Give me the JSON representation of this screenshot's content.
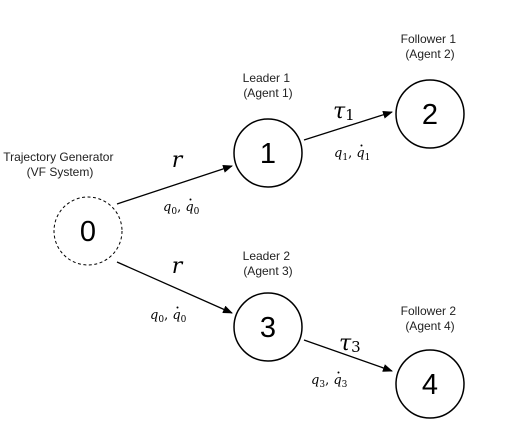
{
  "nodes": {
    "n0": {
      "id": "0",
      "caption": [
        "Trajectory Generator",
        "(VF System)"
      ]
    },
    "n1": {
      "id": "1",
      "caption": [
        "Leader 1",
        "(Agent 1)"
      ]
    },
    "n2": {
      "id": "2",
      "caption": [
        "Follower 1",
        "(Agent 2)"
      ]
    },
    "n3": {
      "id": "3",
      "caption": [
        "Leader 2",
        "(Agent 3)"
      ]
    },
    "n4": {
      "id": "4",
      "caption": [
        "Follower 2",
        "(Agent 4)"
      ]
    }
  },
  "edges": {
    "e01": {
      "symbol": "r",
      "state": [
        "q",
        "0",
        "q",
        "0"
      ]
    },
    "e03": {
      "symbol": "r",
      "state": [
        "q",
        "0",
        "q",
        "0"
      ]
    },
    "e12": {
      "symbol": "τ",
      "symbol_sub": "1",
      "state": [
        "q",
        "1",
        "q",
        "1"
      ]
    },
    "e34": {
      "symbol": "τ",
      "symbol_sub": "3",
      "state": [
        "q",
        "3",
        "q",
        "3"
      ]
    }
  },
  "separator": ", "
}
